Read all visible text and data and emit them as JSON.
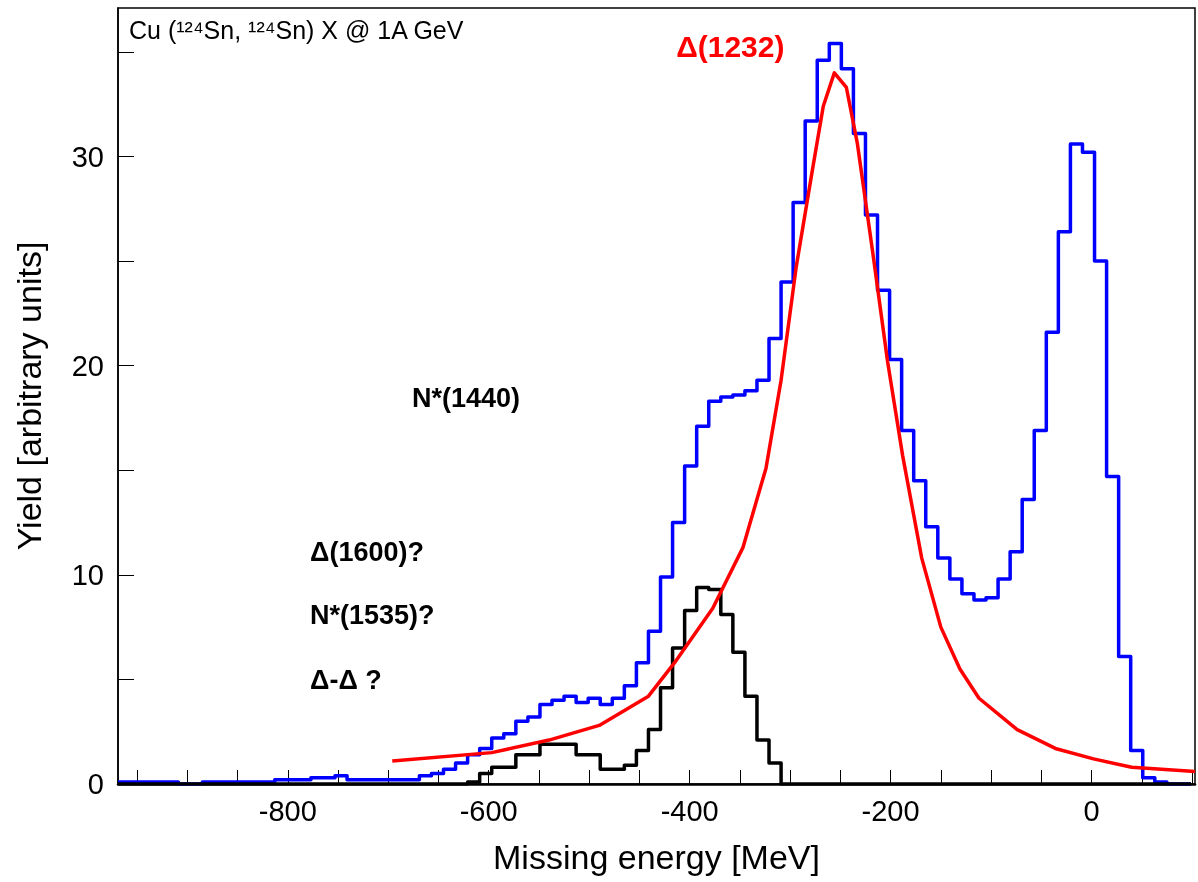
{
  "chart_data": {
    "type": "histogram",
    "title": "Cu (¹²⁴Sn, ¹²⁴Sn) X @ 1A GeV",
    "xlabel": "Missing energy [MeV]",
    "ylabel": "Yield [arbitrary units]",
    "bins": [
      -969,
      -957,
      -945,
      -933,
      -921,
      -909,
      -897,
      -885,
      -873,
      -861,
      -849,
      -837,
      -825,
      -813,
      -801,
      -789,
      -777,
      -765,
      -753,
      -741,
      -729,
      -717,
      -705,
      -693,
      -681,
      -669,
      -657,
      -645,
      -633,
      -621,
      -609,
      -597,
      -585,
      -573,
      -561,
      -549,
      -537,
      -525,
      -513,
      -501,
      -489,
      -477,
      -465,
      -453,
      -441,
      -429,
      -417,
      -405,
      -393,
      -381,
      -369,
      -357,
      -345,
      -333,
      -321,
      -309,
      -297,
      -285,
      -273,
      -261,
      -249,
      -237,
      -225,
      -213,
      -201,
      -189,
      -177,
      -165,
      -153,
      -141,
      -129,
      -117,
      -105,
      -93,
      -81,
      -69,
      -57,
      -45,
      -33,
      -21,
      -9,
      3,
      15,
      27,
      39,
      51,
      63,
      75,
      87,
      99
    ],
    "series": [
      {
        "color": "#0000ff",
        "values": [
          0.1,
          0.1,
          0.1,
          0.1,
          0.1,
          0,
          0,
          0.1,
          0.1,
          0.1,
          0.1,
          0.1,
          0.1,
          0.2,
          0.2,
          0.2,
          0.3,
          0.3,
          0.4,
          0.2,
          0.2,
          0.2,
          0.2,
          0.2,
          0.2,
          0.4,
          0.5,
          0.7,
          1.0,
          1.4,
          1.7,
          2.2,
          2.4,
          3.0,
          3.2,
          3.8,
          4.0,
          4.2,
          3.9,
          4.1,
          3.8,
          4.1,
          4.7,
          5.8,
          7.3,
          9.9,
          12.5,
          15.2,
          17.1,
          18.3,
          18.5,
          18.6,
          18.8,
          19.3,
          21.3,
          24.0,
          27.8,
          31.7,
          34.6,
          35.4,
          34.2,
          31.1,
          27.2,
          23.6,
          20.3,
          16.9,
          14.5,
          12.3,
          10.8,
          9.8,
          9.1,
          8.8,
          8.9,
          9.8,
          11.1,
          13.6,
          16.9,
          21.6,
          26.4,
          30.6,
          30.2,
          25.0,
          14.7,
          6.1,
          1.6,
          0.3,
          0.1,
          0,
          0
        ]
      },
      {
        "color": "#000000",
        "values": [
          0,
          0,
          0,
          0,
          0,
          0,
          0,
          0,
          0,
          0,
          0,
          0,
          0,
          0,
          0,
          0,
          0,
          0,
          0,
          0,
          0,
          0,
          0,
          0,
          0,
          0,
          0,
          0,
          0,
          0.1,
          0.5,
          0.8,
          0.8,
          1.4,
          1.4,
          1.9,
          1.9,
          1.9,
          1.4,
          1.4,
          0.7,
          0.7,
          0.9,
          1.6,
          2.6,
          4.6,
          6.5,
          8.3,
          9.4,
          9.3,
          8.1,
          6.3,
          4.2,
          2.1,
          1.0,
          0,
          0,
          0,
          0,
          0,
          0,
          0,
          0,
          0,
          0,
          0,
          0,
          0,
          0,
          0,
          0,
          0,
          0,
          0,
          0,
          0,
          0,
          0,
          0,
          0,
          0,
          0,
          0,
          0,
          0,
          0,
          0,
          0,
          0
        ]
      },
      {
        "type": "line",
        "name": "Δ(1232)",
        "color": "#ff0000",
        "x": [
          -696,
          -597,
          -540,
          -490,
          -441,
          -415,
          -377,
          -347,
          -324,
          -309,
          -294,
          -278,
          -267,
          -256,
          -244,
          -233,
          -218,
          -203,
          -188,
          -169,
          -150,
          -131,
          -112,
          -74,
          -36,
          2,
          40,
          103
        ],
        "values": [
          1.1,
          1.5,
          2.1,
          2.8,
          4.2,
          5.8,
          8.4,
          11.3,
          15.1,
          19.3,
          24.7,
          29.3,
          32.4,
          34.0,
          33.3,
          30.6,
          25.5,
          20.2,
          15.7,
          10.8,
          7.5,
          5.5,
          4.1,
          2.6,
          1.7,
          1.2,
          0.8,
          0.6
        ]
      }
    ],
    "annotations": [
      "N*(1440)",
      "Δ(1600)?",
      "N*(1535)?",
      "Δ-Δ ?"
    ],
    "xlim": [
      -969,
      103
    ],
    "xticks": [
      {
        "value": -950,
        "label": null
      },
      -800,
      {
        "value": -900,
        "label": null
      },
      {
        "value": -850,
        "label": null
      },
      {
        "value": -750,
        "label": null
      },
      {
        "value": -700,
        "label": null
      },
      {
        "value": -650,
        "label": null
      },
      -600,
      {
        "value": -550,
        "label": null
      },
      {
        "value": -500,
        "label": null
      },
      {
        "value": -450,
        "label": null
      },
      -400,
      {
        "value": -350,
        "label": null
      },
      {
        "value": -300,
        "label": null
      },
      {
        "value": -250,
        "label": null
      },
      -200,
      {
        "value": -150,
        "label": null
      },
      {
        "value": -100,
        "label": null
      },
      {
        "value": -50,
        "label": null
      },
      0,
      {
        "value": 50,
        "label": null
      },
      {
        "value": 100,
        "label": null
      }
    ],
    "ylim": [
      0,
      37.1
    ],
    "yticks": [
      0,
      {
        "value": 5,
        "label": null
      },
      10,
      {
        "value": 15,
        "label": null
      },
      20,
      {
        "value": 25,
        "label": null
      },
      30,
      {
        "value": 35,
        "label": null
      }
    ],
    "grid": false,
    "legend": false,
    "marker": "none",
    "line_style": "solid"
  }
}
